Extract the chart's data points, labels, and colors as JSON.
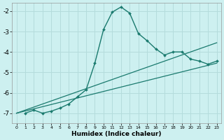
{
  "xlabel": "Humidex (Indice chaleur)",
  "background_color": "#cdf0f0",
  "grid_color": "#b4dcdc",
  "line_color": "#1a7a6e",
  "x_ticks": [
    0,
    1,
    2,
    3,
    4,
    5,
    6,
    7,
    8,
    9,
    10,
    11,
    12,
    13,
    14,
    15,
    16,
    17,
    18,
    19,
    20,
    21,
    22,
    23
  ],
  "y_ticks": [
    -7,
    -6,
    -5,
    -4,
    -3,
    -2
  ],
  "xlim": [
    -0.5,
    23.5
  ],
  "ylim": [
    -7.5,
    -1.6
  ],
  "curve1_x": [
    1,
    2,
    3,
    4,
    5,
    6,
    7,
    8,
    9,
    10,
    11,
    12,
    13,
    14,
    15,
    16,
    17,
    18,
    19,
    20,
    21,
    22,
    23
  ],
  "curve1_y": [
    -7.0,
    -6.85,
    -7.0,
    -6.9,
    -6.75,
    -6.55,
    -6.2,
    -5.85,
    -4.55,
    -2.9,
    -2.05,
    -1.8,
    -2.1,
    -3.1,
    -3.45,
    -3.85,
    -4.15,
    -4.0,
    -4.0,
    -4.35,
    -4.45,
    -4.6,
    -4.45
  ],
  "curve2_x": [
    0,
    23
  ],
  "curve2_y": [
    -7.0,
    -3.55
  ],
  "curve3_x": [
    0,
    23
  ],
  "curve3_y": [
    -7.0,
    -4.55
  ],
  "xlabel_fontsize": 6.5,
  "xlabel_fontweight": "bold"
}
